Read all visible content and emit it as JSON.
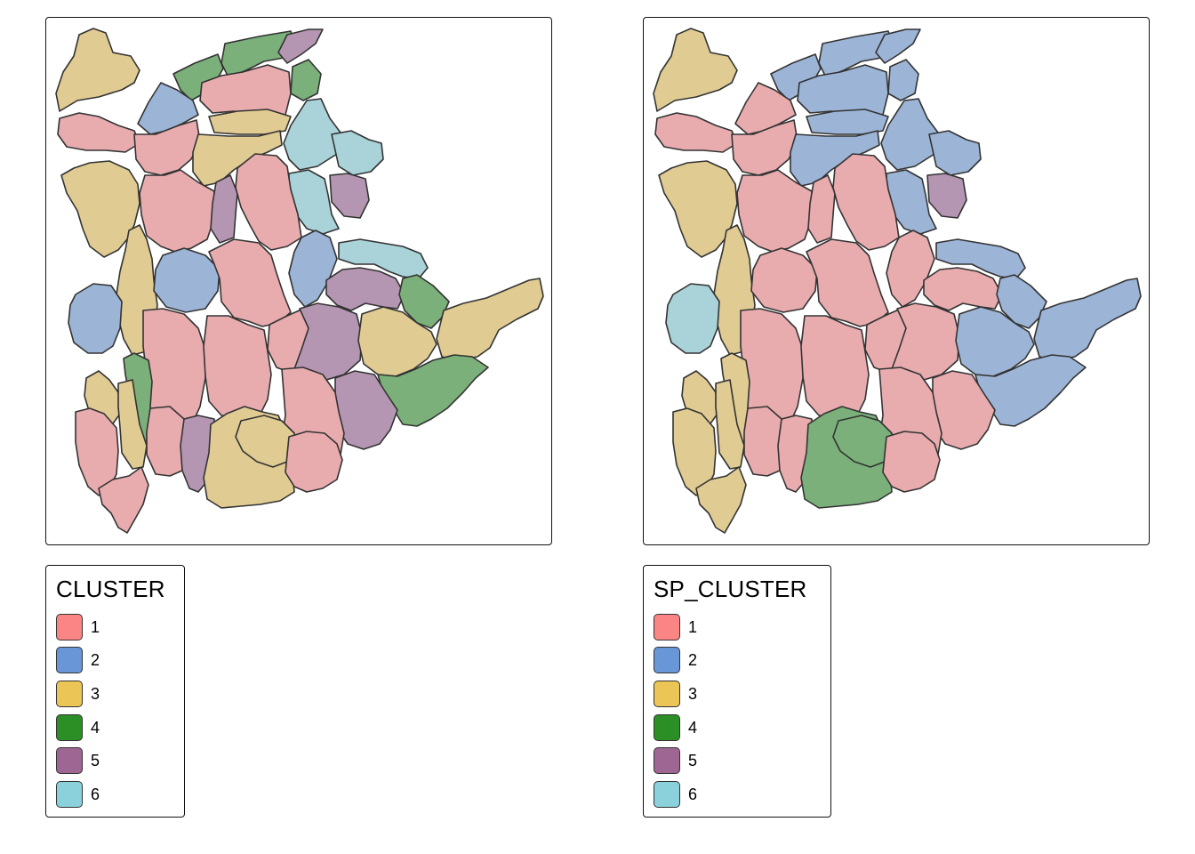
{
  "colors": {
    "1": "#e8acaf",
    "2": "#9cb4d6",
    "3": "#e0cb92",
    "4": "#7bb07a",
    "5": "#b596b2",
    "6": "#a9d2d9"
  },
  "legend_swatch_colors": {
    "1": "#fb8585",
    "2": "#6896d6",
    "3": "#ecc557",
    "4": "#2b8f25",
    "5": "#9e6793",
    "6": "#8bd1dc"
  },
  "maps": [
    {
      "legend": {
        "title": "CLUSTER",
        "items": [
          {
            "label": "1",
            "key": "1"
          },
          {
            "label": "2",
            "key": "2"
          },
          {
            "label": "3",
            "key": "3"
          },
          {
            "label": "4",
            "key": "4"
          },
          {
            "label": "5",
            "key": "5"
          },
          {
            "label": "6",
            "key": "6"
          }
        ]
      }
    },
    {
      "legend": {
        "title": "SP_CLUSTER",
        "items": [
          {
            "label": "1",
            "key": "1"
          },
          {
            "label": "2",
            "key": "2"
          },
          {
            "label": "3",
            "key": "3"
          },
          {
            "label": "4",
            "key": "4"
          },
          {
            "label": "5",
            "key": "5"
          },
          {
            "label": "6",
            "key": "6"
          }
        ]
      }
    }
  ]
}
